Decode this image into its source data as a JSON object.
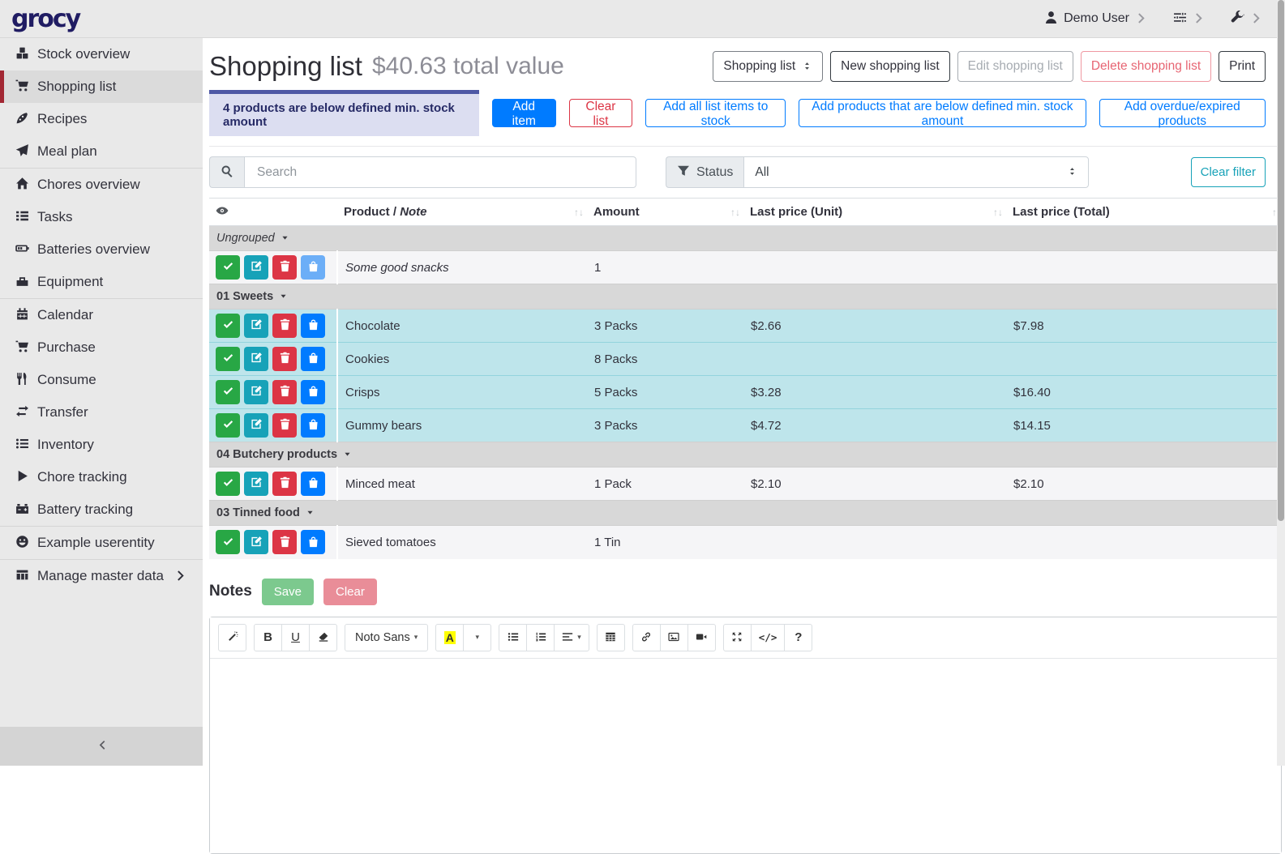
{
  "topbar": {
    "logo": "grocy",
    "user_label": "Demo User"
  },
  "sidebar": {
    "items": [
      {
        "label": "Stock overview",
        "icon": "boxes"
      },
      {
        "label": "Shopping list",
        "icon": "cart",
        "active": true
      },
      {
        "label": "Recipes",
        "icon": "pizza"
      },
      {
        "label": "Meal plan",
        "icon": "paper-plane"
      },
      {
        "label": "Chores overview",
        "icon": "home",
        "divider_before": true
      },
      {
        "label": "Tasks",
        "icon": "tasks"
      },
      {
        "label": "Batteries overview",
        "icon": "battery"
      },
      {
        "label": "Equipment",
        "icon": "toolbox"
      },
      {
        "label": "Calendar",
        "icon": "calendar",
        "divider_before": true
      },
      {
        "label": "Purchase",
        "icon": "cart"
      },
      {
        "label": "Consume",
        "icon": "utensils"
      },
      {
        "label": "Transfer",
        "icon": "transfer"
      },
      {
        "label": "Inventory",
        "icon": "list"
      },
      {
        "label": "Chore tracking",
        "icon": "play"
      },
      {
        "label": "Battery tracking",
        "icon": "car-battery"
      },
      {
        "label": "Example userentity",
        "icon": "smiley",
        "divider_before": true
      },
      {
        "label": "Manage master data",
        "icon": "table",
        "divider_before": true,
        "has_submenu": true
      }
    ]
  },
  "page": {
    "title": "Shopping list",
    "subtitle": "$40.63 total value"
  },
  "toolbar": {
    "list_select": "Shopping list",
    "new_label": "New shopping list",
    "edit_label": "Edit shopping list",
    "delete_label": "Delete shopping list",
    "print_label": "Print"
  },
  "alert": {
    "text": "4 products are below defined min. stock amount"
  },
  "actions": {
    "add_item": "Add item",
    "clear_list": "Clear list",
    "add_all_to_stock": "Add all list items to stock",
    "add_below_min": "Add products that are below defined min. stock amount",
    "add_overdue": "Add overdue/expired products"
  },
  "filters": {
    "search_placeholder": "Search",
    "status_label": "Status",
    "status_value": "All",
    "clear_label": "Clear filter"
  },
  "table": {
    "columns": {
      "product_prefix": "Product /",
      "product_note": "Note",
      "amount": "Amount",
      "unit_price": "Last price (Unit)",
      "total_price": "Last price (Total)"
    },
    "groups": [
      {
        "name": "Ungrouped",
        "italic": true,
        "rows": [
          {
            "product": "Some good snacks",
            "note": true,
            "amount": "1",
            "unit_price": "",
            "total_price": "",
            "highlight": false,
            "bag_disabled": true
          }
        ]
      },
      {
        "name": "01 Sweets",
        "rows": [
          {
            "product": "Chocolate",
            "amount": "3 Packs",
            "unit_price": "$2.66",
            "total_price": "$7.98",
            "highlight": true
          },
          {
            "product": "Cookies",
            "amount": "8 Packs",
            "unit_price": "",
            "total_price": "",
            "highlight": true
          },
          {
            "product": "Crisps",
            "amount": "5 Packs",
            "unit_price": "$3.28",
            "total_price": "$16.40",
            "highlight": true
          },
          {
            "product": "Gummy bears",
            "amount": "3 Packs",
            "unit_price": "$4.72",
            "total_price": "$14.15",
            "highlight": true
          }
        ]
      },
      {
        "name": "04 Butchery products",
        "rows": [
          {
            "product": "Minced meat",
            "amount": "1 Pack",
            "unit_price": "$2.10",
            "total_price": "$2.10",
            "highlight": false
          }
        ]
      },
      {
        "name": "03 Tinned food",
        "rows": [
          {
            "product": "Sieved tomatoes",
            "amount": "1 Tin",
            "unit_price": "",
            "total_price": "",
            "highlight": false
          }
        ]
      }
    ]
  },
  "notes": {
    "heading": "Notes",
    "save_label": "Save",
    "clear_label": "Clear",
    "font_name": "Noto Sans"
  },
  "icons_text": {
    "sort": "↑↓",
    "chevron_right": "›",
    "chevron_left": "‹",
    "caret_down": "▾"
  },
  "colors": {
    "brand": "#201c63",
    "accent_blue": "#007bff",
    "success_green": "#28a745",
    "info_teal": "#17a2b8",
    "danger_red": "#dc3545",
    "active_item_marker": "#a22733",
    "alert_bg": "#dcdef1",
    "alert_border": "#4e58a5",
    "highlight_row": "#bee5eb",
    "sidebar_bg": "#e9e9e9"
  }
}
